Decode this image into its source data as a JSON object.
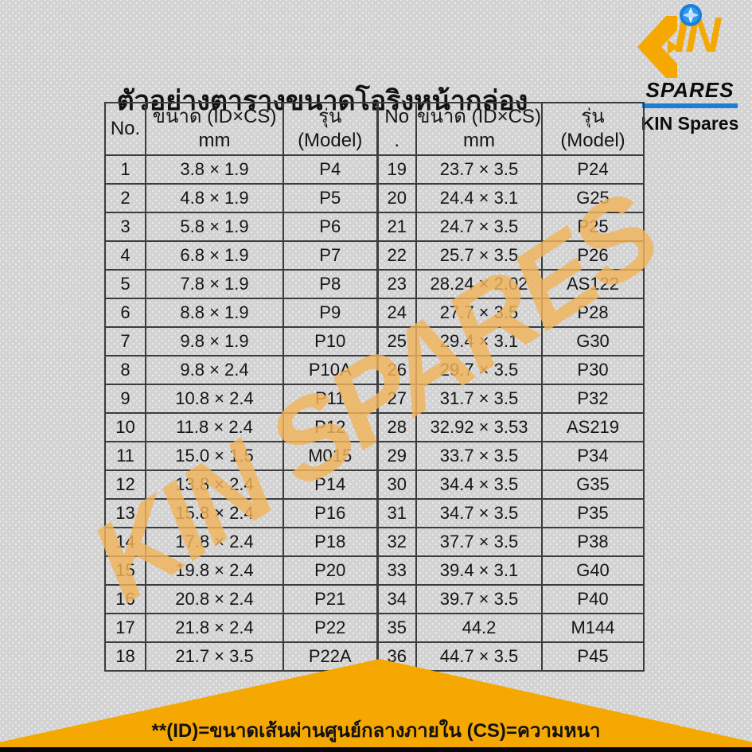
{
  "title": "ตัวอย่างตารางขนาดโอริงหน้ากล่อง",
  "logo": {
    "in_letters": "IN",
    "spares": "SPARES",
    "caption": "KIN Spares"
  },
  "watermark_text": "KIN SPARES",
  "table": {
    "headers": [
      "No.",
      "ขนาด (ID×CS)\nmm",
      "รุ่น\n(Model)",
      "No\n.",
      "ขนาด (ID×CS)\nmm",
      "รุ่น\n(Model)"
    ],
    "rows": [
      [
        "1",
        "3.8 × 1.9",
        "P4",
        "19",
        "23.7 × 3.5",
        "P24"
      ],
      [
        "2",
        "4.8 × 1.9",
        "P5",
        "20",
        "24.4 × 3.1",
        "G25"
      ],
      [
        "3",
        "5.8 × 1.9",
        "P6",
        "21",
        "24.7 × 3.5",
        "P25"
      ],
      [
        "4",
        "6.8 × 1.9",
        "P7",
        "22",
        "25.7 × 3.5",
        "P26"
      ],
      [
        "5",
        "7.8 × 1.9",
        "P8",
        "23",
        "28.24 × 2.02",
        "AS122"
      ],
      [
        "6",
        "8.8 × 1.9",
        "P9",
        "24",
        "27.7 × 3.5",
        "P28"
      ],
      [
        "7",
        "9.8 × 1.9",
        "P10",
        "25",
        "29.4 × 3.1",
        "G30"
      ],
      [
        "8",
        "9.8 × 2.4",
        "P10A",
        "26",
        "29.7 × 3.5",
        "P30"
      ],
      [
        "9",
        "10.8 × 2.4",
        "P11",
        "27",
        "31.7 × 3.5",
        "P32"
      ],
      [
        "10",
        "11.8 × 2.4",
        "P12",
        "28",
        "32.92 × 3.53",
        "AS219"
      ],
      [
        "11",
        "15.0 × 1.5",
        "M015",
        "29",
        "33.7 × 3.5",
        "P34"
      ],
      [
        "12",
        "13.8 × 2.4",
        "P14",
        "30",
        "34.4 × 3.5",
        "G35"
      ],
      [
        "13",
        "15.8 × 2.4",
        "P16",
        "31",
        "34.7 × 3.5",
        "P35"
      ],
      [
        "14",
        "17.8 × 2.4",
        "P18",
        "32",
        "37.7 × 3.5",
        "P38"
      ],
      [
        "15",
        "19.8 × 2.4",
        "P20",
        "33",
        "39.4 × 3.1",
        "G40"
      ],
      [
        "16",
        "20.8 × 2.4",
        "P21",
        "34",
        "39.7 × 3.5",
        "P40"
      ],
      [
        "17",
        "21.8 × 2.4",
        "P22",
        "35",
        "44.2",
        "M144"
      ],
      [
        "18",
        "21.7 × 3.5",
        "P22A",
        "36",
        "44.7 × 3.5",
        "P45"
      ]
    ]
  },
  "footer": {
    "note": "**(ID)=ขนาดเส้นผ่านศูนย์กลางภายใน (CS)=ความหนา"
  },
  "colors": {
    "orange": "#F6A802",
    "blue": "#1B7FD6",
    "watermark_orange": "#F2B45C",
    "background_gray": "#D3D3D3",
    "border_dark": "#3C3C3C"
  }
}
